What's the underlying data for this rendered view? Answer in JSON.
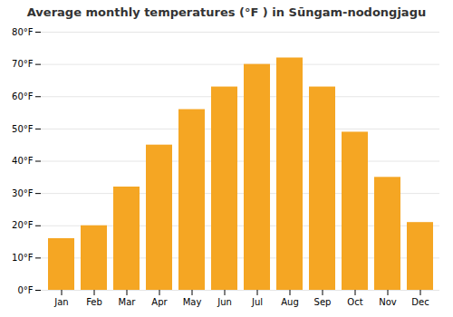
{
  "chart_data": {
    "type": "bar",
    "title": "Average monthly temperatures (°F ) in Sūngam-nodongjagu",
    "categories": [
      "Jan",
      "Feb",
      "Mar",
      "Apr",
      "May",
      "Jun",
      "Jul",
      "Aug",
      "Sep",
      "Oct",
      "Nov",
      "Dec"
    ],
    "values": [
      16,
      20,
      32,
      45,
      56,
      63,
      70,
      72,
      63,
      49,
      35,
      21
    ],
    "color": "#F5A623",
    "ylim": [
      0,
      80
    ],
    "yticks": [
      {
        "value": 0,
        "label": "0°F"
      },
      {
        "value": 10,
        "label": "10°F"
      },
      {
        "value": 20,
        "label": "20°F"
      },
      {
        "value": 30,
        "label": "30°F"
      },
      {
        "value": 40,
        "label": "40°F"
      },
      {
        "value": 50,
        "label": "50°F"
      },
      {
        "value": 60,
        "label": "60°F"
      },
      {
        "value": 70,
        "label": "70°F"
      },
      {
        "value": 80,
        "label": "80°F"
      }
    ],
    "grid": true
  }
}
